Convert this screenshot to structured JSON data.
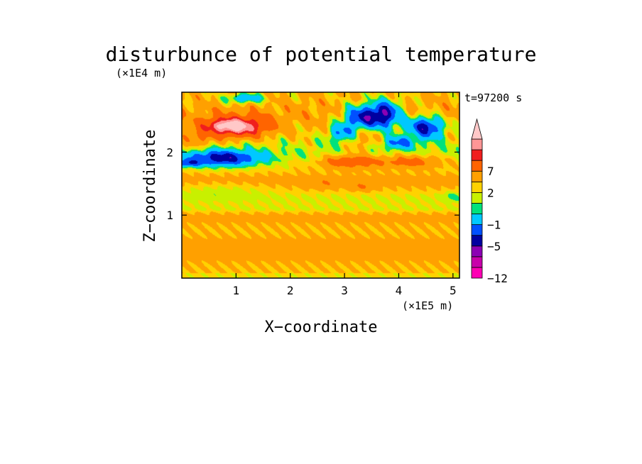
{
  "chart_data": {
    "type": "heatmap",
    "title": "disturbunce of potential temperature",
    "time_label": "t=97200 s",
    "xlabel": "X−coordinate",
    "ylabel": "Z−coordinate",
    "x_scale_label": "(×1E5 m)",
    "y_scale_label": "(×1E4 m)",
    "xlim": [
      0,
      5.12
    ],
    "ylim": [
      0,
      2.95
    ],
    "x_ticks": [
      {
        "value": 1,
        "label": "1"
      },
      {
        "value": 2,
        "label": "2"
      },
      {
        "value": 3,
        "label": "3"
      },
      {
        "value": 4,
        "label": "4"
      },
      {
        "value": 5,
        "label": "5"
      }
    ],
    "y_ticks": [
      {
        "value": 1,
        "label": "1"
      },
      {
        "value": 2,
        "label": "2"
      }
    ],
    "colorbar": {
      "levels": [
        -12,
        -9,
        -7,
        -5,
        -3,
        -1,
        0,
        1,
        2,
        4,
        7,
        9,
        11
      ],
      "colors": [
        "#ff00b4",
        "#c800aa",
        "#8c00b4",
        "#0000a0",
        "#0050ff",
        "#00c8ff",
        "#00e17d",
        "#c8f000",
        "#ffd200",
        "#ffa000",
        "#ff6400",
        "#f01e1e",
        "#ff9696",
        "#ffc8c8"
      ],
      "labels": [
        {
          "value": -12,
          "label": "−12"
        },
        {
          "value": -5,
          "label": "−5"
        },
        {
          "value": -1,
          "label": "−1"
        },
        {
          "value": 2,
          "label": "2"
        },
        {
          "value": 7,
          "label": "7"
        }
      ],
      "extend": "max"
    },
    "field_features": [
      {
        "name": "warm core",
        "x": 1.0,
        "z": 2.4,
        "rx": 0.55,
        "rz": 0.16,
        "amp": 9.0
      },
      {
        "name": "warm core inner",
        "x": 0.8,
        "z": 2.42,
        "rx": 0.3,
        "rz": 0.08,
        "amp": 3.0
      },
      {
        "name": "cold band",
        "x": 0.75,
        "z": 1.9,
        "rx": 0.7,
        "rz": 0.13,
        "amp": -7.0
      },
      {
        "name": "cold band left",
        "x": 0.1,
        "z": 1.82,
        "rx": 0.25,
        "rz": 0.06,
        "amp": -4.0
      },
      {
        "name": "upper cold 1",
        "x": 3.3,
        "z": 2.55,
        "rx": 0.35,
        "rz": 0.2,
        "amp": -7.5
      },
      {
        "name": "upper cold 2",
        "x": 3.75,
        "z": 2.6,
        "rx": 0.3,
        "rz": 0.22,
        "amp": -8.5
      },
      {
        "name": "upper cold 3",
        "x": 4.5,
        "z": 2.4,
        "rx": 0.35,
        "rz": 0.18,
        "amp": -8.0
      },
      {
        "name": "upper cold 4",
        "x": 4.0,
        "z": 2.15,
        "rx": 0.3,
        "rz": 0.1,
        "amp": -4.5
      },
      {
        "name": "upper cold 5",
        "x": 2.95,
        "z": 2.3,
        "rx": 0.25,
        "rz": 0.15,
        "amp": -5.0
      },
      {
        "name": "top cold",
        "x": 1.15,
        "z": 2.85,
        "rx": 0.35,
        "rz": 0.08,
        "amp": -5.0
      },
      {
        "name": "warm blob mid",
        "x": 3.1,
        "z": 1.85,
        "rx": 0.5,
        "rz": 0.1,
        "amp": 5.0
      },
      {
        "name": "warm blob right",
        "x": 4.2,
        "z": 1.85,
        "rx": 0.6,
        "rz": 0.1,
        "amp": 4.0
      },
      {
        "name": "warm center",
        "x": 3.3,
        "z": 2.2,
        "rx": 0.35,
        "rz": 0.2,
        "amp": 2.0
      },
      {
        "name": "mid warm",
        "x": 2.6,
        "z": 1.5,
        "rx": 0.3,
        "rz": 0.08,
        "amp": 1.5
      },
      {
        "name": "mid warm 2",
        "x": 3.35,
        "z": 1.45,
        "rx": 0.2,
        "rz": 0.07,
        "amp": 2.0
      },
      {
        "name": "cyan layer left",
        "x": 0.7,
        "z": 1.4,
        "rx": 0.9,
        "rz": 0.12,
        "amp": -1.3
      },
      {
        "name": "cyan layer right",
        "x": 5.0,
        "z": 1.3,
        "rx": 0.2,
        "rz": 0.08,
        "amp": -1.5
      },
      {
        "name": "upper warm left",
        "x": 0.3,
        "z": 2.2,
        "rx": 0.3,
        "rz": 0.15,
        "amp": 2.5
      }
    ]
  }
}
